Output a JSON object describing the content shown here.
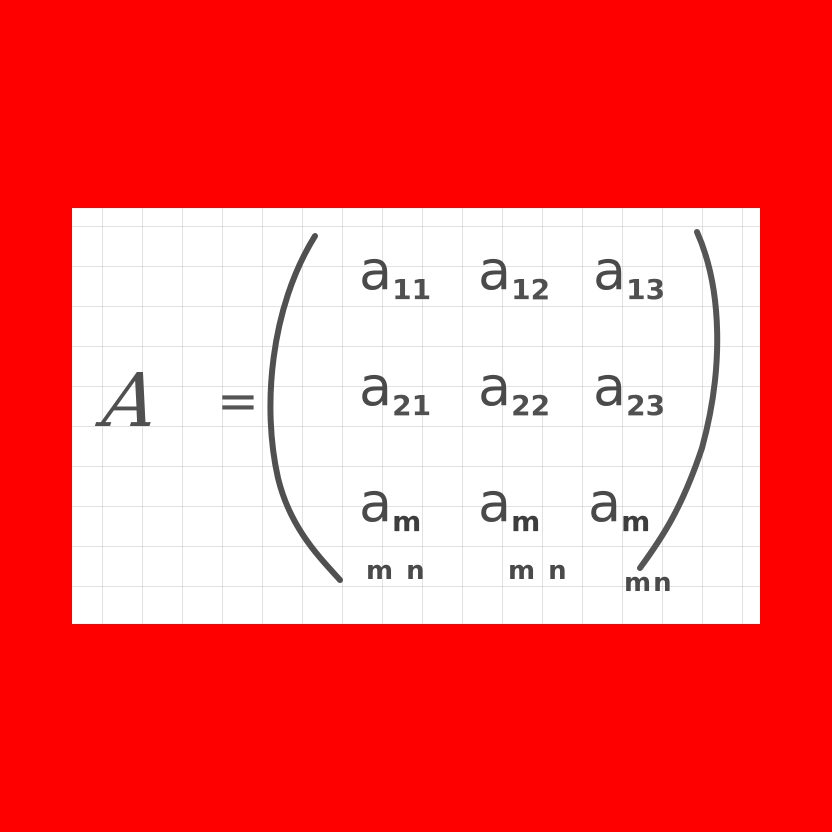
{
  "equation": {
    "lhs": "A",
    "equals": "=",
    "rows": [
      [
        {
          "base": "a",
          "sub": "11"
        },
        {
          "base": "a",
          "sub": "12"
        },
        {
          "base": "a",
          "sub": "13"
        }
      ],
      [
        {
          "base": "a",
          "sub": "21"
        },
        {
          "base": "a",
          "sub": "22"
        },
        {
          "base": "a",
          "sub": "23"
        }
      ],
      [
        {
          "base": "a",
          "sub": "m"
        },
        {
          "base": "a",
          "sub": "m"
        },
        {
          "base": "a",
          "sub": "m"
        }
      ]
    ],
    "last_row_notes": [
      "m n",
      "m n",
      "mn"
    ]
  },
  "colors": {
    "background": "#ff0000",
    "paper": "#ffffff",
    "ink": "#4a4a4a",
    "grid": "#969696"
  }
}
